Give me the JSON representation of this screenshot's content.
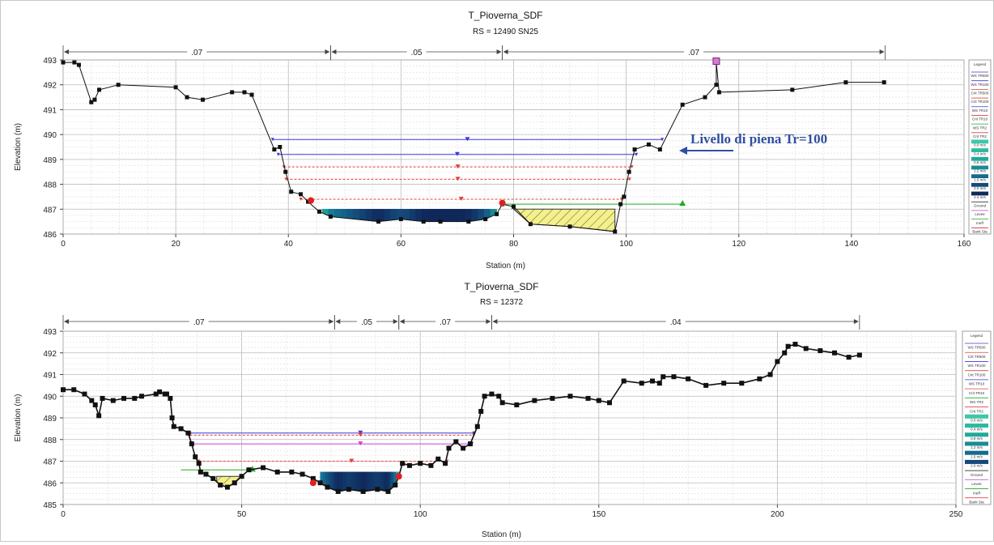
{
  "chart_data": [
    {
      "type": "line",
      "title": "T_Pioverna_SDF",
      "subtitle": "RS = 12490  SN25",
      "xlabel": "Station (m)",
      "ylabel": "Elevation (m)",
      "xlim": [
        0,
        160
      ],
      "ylim": [
        486,
        493
      ],
      "xticks": [
        0,
        20,
        40,
        60,
        80,
        100,
        120,
        140,
        160
      ],
      "yticks": [
        486,
        487,
        488,
        489,
        490,
        491,
        492,
        493
      ],
      "grid": true,
      "manning": [
        {
          "x0": 0,
          "x1": 47.5,
          "label": ".07"
        },
        {
          "x0": 47.5,
          "x1": 78,
          "label": ".05"
        },
        {
          "x0": 78,
          "x1": 146,
          "label": ".07"
        }
      ],
      "ground": [
        [
          0,
          492.9
        ],
        [
          2,
          492.9
        ],
        [
          2.8,
          492.8
        ],
        [
          5,
          491.3
        ],
        [
          5.6,
          491.4
        ],
        [
          6.4,
          491.8
        ],
        [
          9.8,
          492.0
        ],
        [
          20,
          491.9
        ],
        [
          22,
          491.5
        ],
        [
          24.8,
          491.4
        ],
        [
          30,
          491.7
        ],
        [
          32.2,
          491.7
        ],
        [
          33.5,
          491.6
        ],
        [
          37.5,
          489.4
        ],
        [
          38.5,
          489.5
        ],
        [
          39.5,
          488.5
        ],
        [
          40.5,
          487.7
        ],
        [
          42.2,
          487.6
        ],
        [
          43.5,
          487.3
        ],
        [
          45.5,
          486.9
        ],
        [
          47.5,
          486.7
        ],
        [
          56,
          486.5
        ],
        [
          60,
          486.6
        ],
        [
          64,
          486.5
        ],
        [
          67,
          486.5
        ],
        [
          72,
          486.5
        ],
        [
          75,
          486.6
        ],
        [
          77,
          486.8
        ],
        [
          78,
          487.2
        ],
        [
          80,
          487.1
        ],
        [
          83,
          486.4
        ],
        [
          90,
          486.3
        ],
        [
          98,
          486.1
        ],
        [
          99,
          487.2
        ],
        [
          99.6,
          487.5
        ],
        [
          100.5,
          488.5
        ],
        [
          101.5,
          489.4
        ],
        [
          104,
          489.6
        ],
        [
          106,
          489.4
        ],
        [
          110,
          491.2
        ],
        [
          114,
          491.5
        ],
        [
          116,
          492.0
        ],
        [
          116,
          492.9
        ],
        [
          116.5,
          491.7
        ],
        [
          129.5,
          491.8
        ],
        [
          139,
          492.1
        ],
        [
          145.8,
          492.1
        ]
      ],
      "water_levels": [
        {
          "name": "WS TR500",
          "y": 489.8,
          "x0": 37.2,
          "x1": 106.4,
          "color": "#3a3adc",
          "dash": ""
        },
        {
          "name": "WS TR100",
          "y": 489.2,
          "x0": 38.2,
          "x1": 101.8,
          "color": "#3a3adc",
          "dash": ""
        },
        {
          "name": "Crit TR500",
          "y": 488.7,
          "x0": 39.2,
          "x1": 101,
          "color": "#e04040",
          "dash": "3,2"
        },
        {
          "name": "Crit TR100",
          "y": 488.2,
          "x0": 39.6,
          "x1": 100.6,
          "color": "#e04040",
          "dash": "3,2"
        },
        {
          "name": "Crit TR10",
          "y": 487.4,
          "x0": 42.2,
          "x1": 99.2,
          "color": "#e04040",
          "dash": "3,2"
        },
        {
          "name": "WS TR2",
          "y": 487.2,
          "x0": 78,
          "x1": 110,
          "color": "#22aa22",
          "dash": ""
        }
      ],
      "flow_area": {
        "x0": 46,
        "x1": 77,
        "top": 487.0
      },
      "ineffective_area": {
        "x0": 80,
        "x1": 98,
        "top": 487.0
      },
      "bank_stations": [
        [
          44,
          487.35
        ],
        [
          78,
          487.25
        ]
      ],
      "legend_title": "Legend",
      "legend": [
        "WS TR500",
        "WS TR100",
        "Crit TR500",
        "Crit TR100",
        "WS TR10",
        "Crit TR10",
        "WS TR2",
        "Crit TR2",
        "0.0 m/s",
        "0.4 m/s",
        "0.8 m/s",
        "1.2 m/s",
        "1.6 m/s",
        "2.0 m/s",
        "2.4 m/s",
        "Ground",
        "Levee",
        "Ineff",
        "Bank Sta"
      ],
      "annotation": "Livello di piena Tr=100"
    },
    {
      "type": "line",
      "title": "T_Pioverna_SDF",
      "subtitle": "RS = 12372",
      "xlabel": "Station (m)",
      "ylabel": "Elevation (m)",
      "xlim": [
        0,
        250
      ],
      "ylim": [
        485,
        493
      ],
      "xticks": [
        0,
        50,
        100,
        150,
        200,
        250
      ],
      "yticks": [
        485,
        486,
        487,
        488,
        489,
        490,
        491,
        492,
        493
      ],
      "grid": true,
      "manning": [
        {
          "x0": 0,
          "x1": 76,
          "label": ".07"
        },
        {
          "x0": 76,
          "x1": 94,
          "label": ".05"
        },
        {
          "x0": 94,
          "x1": 120,
          "label": ".07"
        },
        {
          "x0": 120,
          "x1": 223,
          "label": ".04"
        }
      ],
      "ground": [
        [
          0,
          490.3
        ],
        [
          3,
          490.3
        ],
        [
          6,
          490.1
        ],
        [
          8,
          489.8
        ],
        [
          9,
          489.6
        ],
        [
          10,
          489.1
        ],
        [
          11,
          489.9
        ],
        [
          14,
          489.8
        ],
        [
          17,
          489.9
        ],
        [
          20,
          489.9
        ],
        [
          22,
          490.0
        ],
        [
          26,
          490.1
        ],
        [
          27,
          490.2
        ],
        [
          28.5,
          490.1
        ],
        [
          29,
          490.1
        ],
        [
          30,
          489.9
        ],
        [
          30.5,
          489.0
        ],
        [
          31,
          488.6
        ],
        [
          33,
          488.5
        ],
        [
          35,
          488.3
        ],
        [
          36,
          487.8
        ],
        [
          37,
          487.2
        ],
        [
          38,
          486.9
        ],
        [
          38.5,
          486.5
        ],
        [
          40,
          486.4
        ],
        [
          42,
          486.2
        ],
        [
          44,
          485.9
        ],
        [
          46,
          485.8
        ],
        [
          48,
          486.0
        ],
        [
          50,
          486.3
        ],
        [
          52,
          486.6
        ],
        [
          56,
          486.7
        ],
        [
          60,
          486.5
        ],
        [
          64,
          486.5
        ],
        [
          67,
          486.4
        ],
        [
          70,
          486.2
        ],
        [
          72,
          486.0
        ],
        [
          74,
          485.8
        ],
        [
          77,
          485.6
        ],
        [
          80,
          485.7
        ],
        [
          84,
          485.6
        ],
        [
          88,
          485.7
        ],
        [
          91,
          485.6
        ],
        [
          93,
          485.9
        ],
        [
          94,
          486.3
        ],
        [
          95,
          486.9
        ],
        [
          97,
          486.8
        ],
        [
          100,
          486.9
        ],
        [
          103,
          486.8
        ],
        [
          105,
          487.1
        ],
        [
          107,
          486.9
        ],
        [
          108,
          487.6
        ],
        [
          110,
          487.9
        ],
        [
          112,
          487.6
        ],
        [
          114,
          487.8
        ],
        [
          116,
          488.6
        ],
        [
          117,
          489.3
        ],
        [
          118,
          490.0
        ],
        [
          120,
          490.1
        ],
        [
          122,
          490.0
        ],
        [
          123,
          489.7
        ],
        [
          127,
          489.6
        ],
        [
          132,
          489.8
        ],
        [
          137,
          489.9
        ],
        [
          142,
          490.0
        ],
        [
          147,
          489.9
        ],
        [
          150,
          489.8
        ],
        [
          153,
          489.7
        ],
        [
          157,
          490.7
        ],
        [
          162,
          490.6
        ],
        [
          165,
          490.7
        ],
        [
          167,
          490.6
        ],
        [
          168,
          490.9
        ],
        [
          171,
          490.9
        ],
        [
          175,
          490.8
        ],
        [
          180,
          490.5
        ],
        [
          185,
          490.6
        ],
        [
          190,
          490.6
        ],
        [
          195,
          490.8
        ],
        [
          198,
          491.0
        ],
        [
          200,
          491.6
        ],
        [
          202,
          492.0
        ],
        [
          203,
          492.3
        ],
        [
          205,
          492.4
        ],
        [
          208,
          492.2
        ],
        [
          212,
          492.1
        ],
        [
          216,
          492.0
        ],
        [
          220,
          491.8
        ],
        [
          223,
          491.9
        ]
      ],
      "water_levels": [
        {
          "name": "WS TR100",
          "y": 488.3,
          "x0": 35.5,
          "x1": 115,
          "color": "#3a3adc",
          "dash": ""
        },
        {
          "name": "Crit TR100",
          "y": 488.2,
          "x0": 35.5,
          "x1": 115,
          "color": "#e04040",
          "dash": "3,2"
        },
        {
          "name": "WS TR10",
          "y": 487.8,
          "x0": 36,
          "x1": 114.5,
          "color": "#d040d0",
          "dash": ""
        },
        {
          "name": "Crit TR10",
          "y": 487.0,
          "x0": 38,
          "x1": 107.5,
          "color": "#e04040",
          "dash": "3,2"
        },
        {
          "name": "WS TR2",
          "y": 486.6,
          "x0": 33,
          "x1": 53,
          "color": "#22aa22",
          "dash": ""
        }
      ],
      "flow_area": {
        "x0": 72,
        "x1": 94,
        "top": 486.5
      },
      "ineffective_area": {
        "x0": 43,
        "x1": 50,
        "top": 486.3
      },
      "bank_stations": [
        [
          70,
          486.0
        ],
        [
          94,
          486.3
        ]
      ],
      "legend_title": "Legend",
      "legend": [
        "WS TR500",
        "Crit TR500",
        "WS TR100",
        "Crit TR100",
        "WS TR10",
        "Crit TR10",
        "WS TR2",
        "Crit TR2",
        "0.0 m/s",
        "0.4 m/s",
        "0.8 m/s",
        "1.2 m/s",
        "1.6 m/s",
        "2.0 m/s",
        "Ground",
        "Levee",
        "Ineff",
        "Bank Sta"
      ]
    }
  ]
}
